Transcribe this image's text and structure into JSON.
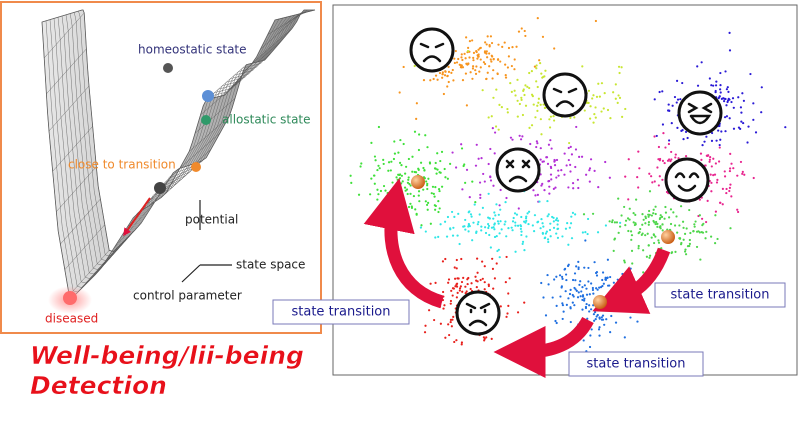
{
  "left_panel": {
    "labels": {
      "homeostatic": "homeostatic state",
      "allostatic": "allostatic state",
      "close": "close to transition",
      "potential": "potential",
      "state_space": "state space",
      "control": "control parameter",
      "diseased": "diseased"
    }
  },
  "title": {
    "line1": "Well-being/lii-being",
    "line2": "Detection"
  },
  "right_panel": {
    "transitions": [
      "state transition",
      "state transition",
      "state transition"
    ]
  }
}
